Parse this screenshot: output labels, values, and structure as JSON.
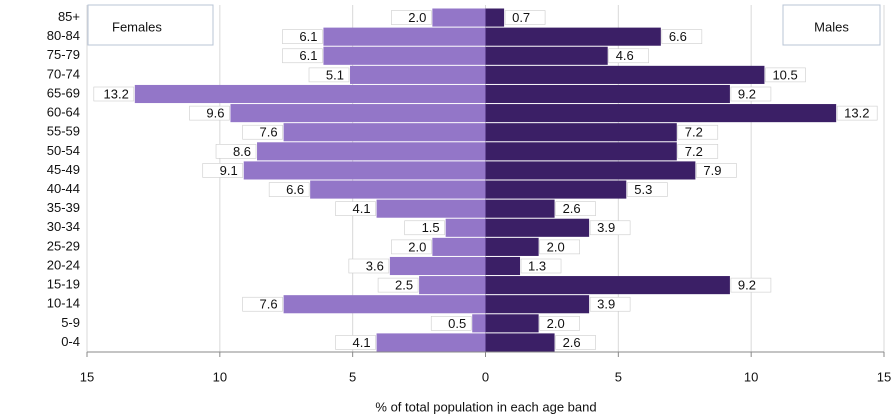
{
  "chart_data": {
    "type": "pyramid",
    "categories": [
      "85+",
      "80-84",
      "75-79",
      "70-74",
      "65-69",
      "60-64",
      "55-59",
      "50-54",
      "45-49",
      "40-44",
      "35-39",
      "30-34",
      "25-29",
      "20-24",
      "15-19",
      "10-14",
      "5-9",
      "0-4"
    ],
    "series": [
      {
        "name": "Females",
        "color": "#9376c8",
        "side": "left",
        "values": [
          2.0,
          6.1,
          6.1,
          5.1,
          13.2,
          9.6,
          7.6,
          8.6,
          9.1,
          6.6,
          4.1,
          1.5,
          2.0,
          3.6,
          2.5,
          7.6,
          0.5,
          4.1
        ],
        "value_labels": [
          "2.0",
          "6.1",
          "6.1",
          "5.1",
          "13.2",
          "9.6",
          "7.6",
          "8.6",
          "9.1",
          "6.6",
          "4.1",
          "1.5",
          "2.0",
          "3.6",
          "2.5",
          "7.6",
          "0.5",
          "4.1"
        ]
      },
      {
        "name": "Males",
        "color": "#3b1f66",
        "side": "right",
        "values": [
          0.7,
          6.6,
          4.6,
          10.5,
          9.2,
          13.2,
          7.2,
          7.2,
          7.9,
          5.3,
          2.6,
          3.9,
          2.0,
          1.3,
          9.2,
          3.9,
          2.0,
          2.6
        ],
        "value_labels": [
          "0.7",
          "6.6",
          "4.6",
          "10.5",
          "9.2",
          "13.2",
          "7.2",
          "7.2",
          "7.9",
          "5.3",
          "2.6",
          "3.9",
          "2.0",
          "1.3",
          "9.2",
          "3.9",
          "2.0",
          "2.6"
        ]
      }
    ],
    "x_label": "% of total population in each age band",
    "xlim": [
      -15,
      15
    ],
    "xticks": [
      {
        "value": -15,
        "label": "15"
      },
      {
        "value": -10,
        "label": "10"
      },
      {
        "value": -5,
        "label": "5"
      },
      0,
      5,
      10,
      15
    ],
    "grid": true
  }
}
